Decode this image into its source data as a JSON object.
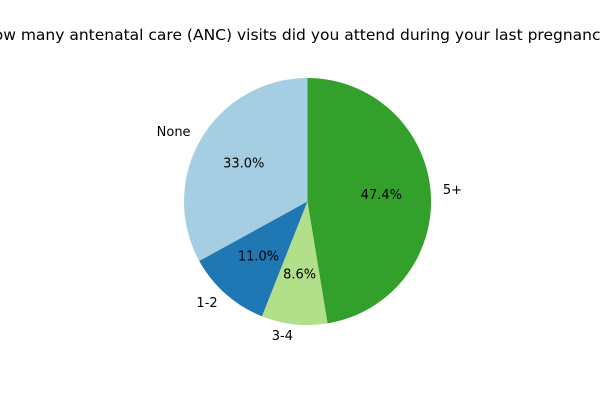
{
  "chart_data": {
    "type": "pie",
    "title": "How many antenatal care (ANC) visits did you attend during your last pregnancy?",
    "categories": [
      "None",
      "1-2",
      "3-4",
      "5+"
    ],
    "values": [
      33.0,
      11.0,
      8.6,
      47.4
    ],
    "percent_labels": [
      "33.0%",
      "11.0%",
      "8.6%",
      "47.4%"
    ],
    "colors": [
      "#a6cee3",
      "#1f78b4",
      "#b2df8a",
      "#33a02c"
    ],
    "start_angle_deg": 90,
    "direction": "counterclockwise",
    "legend": "none"
  }
}
